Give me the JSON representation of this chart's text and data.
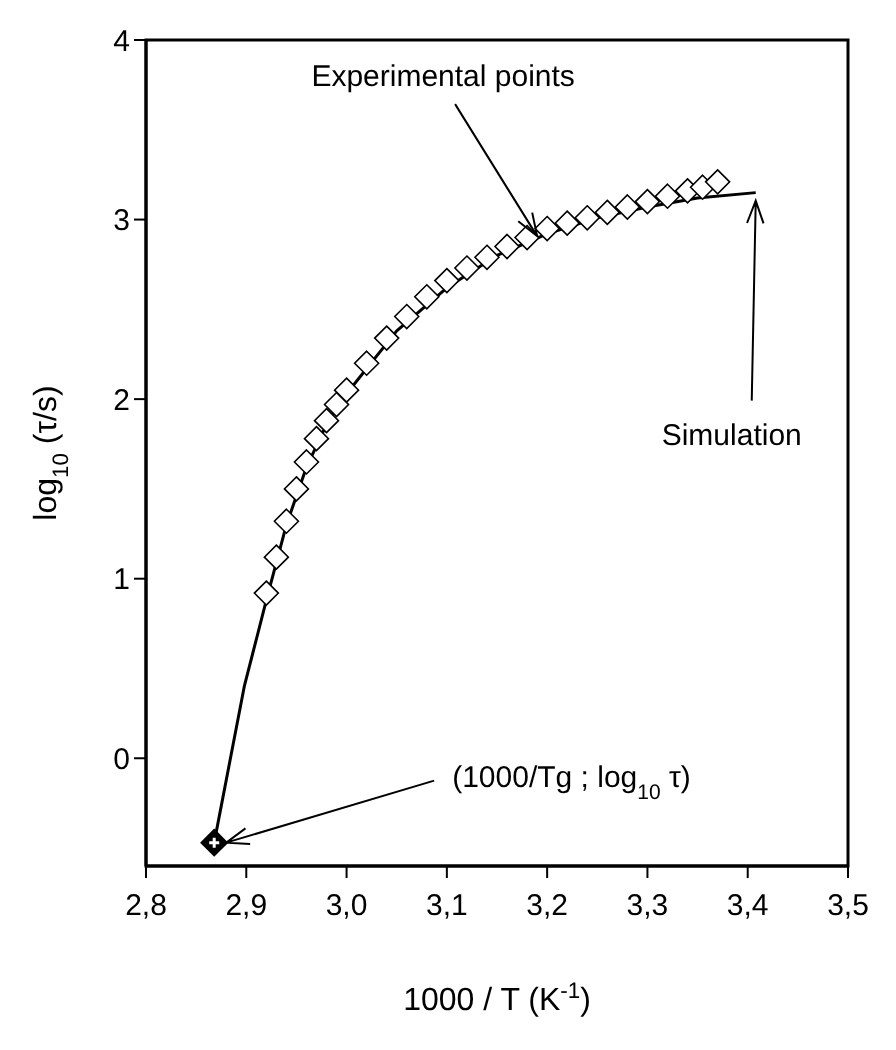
{
  "chart_data": {
    "type": "scatter",
    "xlabel": "1000 / T  (K$^{-1}$)",
    "ylabel": "log$_{10}$ (τ/s)",
    "xlim": [
      2.8,
      3.5
    ],
    "xticks": [
      {
        "value": 2.8,
        "label": "2,8"
      },
      {
        "value": 2.9,
        "label": "2,9"
      },
      {
        "value": 3.0,
        "label": "3,0"
      },
      {
        "value": 3.1,
        "label": "3,1"
      },
      {
        "value": 3.2,
        "label": "3,2"
      },
      {
        "value": 3.3,
        "label": "3,3"
      },
      {
        "value": 3.4,
        "label": "3,4"
      },
      {
        "value": 3.5,
        "label": "3,5"
      }
    ],
    "ylim": [
      -0.6,
      4
    ],
    "yticks": [
      0,
      1,
      2,
      3,
      4
    ],
    "series": [
      {
        "marker": "diamond",
        "color": "#ffffff",
        "x": [
          2.92,
          2.93,
          2.94,
          2.95,
          2.96,
          2.97,
          2.98,
          2.99,
          3.0,
          3.02,
          3.04,
          3.06,
          3.08,
          3.1,
          3.12,
          3.14,
          3.16,
          3.18,
          3.2,
          3.22,
          3.24,
          3.26,
          3.28,
          3.3,
          3.32,
          3.34,
          3.355,
          3.37
        ],
        "values": [
          0.92,
          1.12,
          1.32,
          1.5,
          1.65,
          1.78,
          1.88,
          1.97,
          2.05,
          2.2,
          2.34,
          2.46,
          2.57,
          2.66,
          2.73,
          2.79,
          2.85,
          2.9,
          2.95,
          2.98,
          3.01,
          3.04,
          3.07,
          3.1,
          3.13,
          3.16,
          3.18,
          3.21
        ]
      },
      {
        "type": "line",
        "marker": "none",
        "color": "#000000",
        "x": [
          2.868,
          2.898,
          2.92,
          2.94,
          2.96,
          2.98,
          3.0,
          3.05,
          3.1,
          3.15,
          3.2,
          3.25,
          3.3,
          3.35,
          3.408
        ],
        "values": [
          -0.47,
          0.4,
          0.88,
          1.3,
          1.62,
          1.86,
          2.03,
          2.38,
          2.62,
          2.8,
          2.92,
          3.01,
          3.07,
          3.12,
          3.15
        ]
      },
      {
        "marker": "diamond",
        "color": "#000000",
        "x": [
          2.868
        ],
        "values": [
          -0.47
        ]
      }
    ],
    "annotations": [
      {
        "text": "Experimental points",
        "x": 3.19,
        "y": 2.93
      },
      {
        "text": "Simulation",
        "x": 3.408,
        "y": 3.15
      },
      {
        "text": "(1000/Tg ; log$_{10}$ τ)",
        "x": 2.868,
        "y": -0.47
      }
    ]
  }
}
